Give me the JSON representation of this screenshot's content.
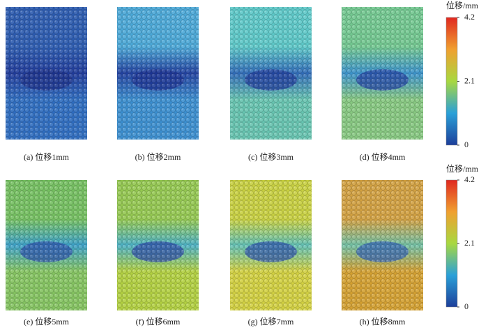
{
  "panels": [
    {
      "caption": "(a) 位移1mm"
    },
    {
      "caption": "(b) 位移2mm"
    },
    {
      "caption": "(c) 位移3mm"
    },
    {
      "caption": "(d) 位移4mm"
    },
    {
      "caption": "(e) 位移5mm"
    },
    {
      "caption": "(f) 位移6mm"
    },
    {
      "caption": "(g) 位移7mm"
    },
    {
      "caption": "(h) 位移8mm"
    }
  ],
  "colorbars": [
    {
      "label": "位移/mm",
      "range": [
        0,
        4.2
      ],
      "ticks": [
        0,
        2.1,
        4.2
      ]
    },
    {
      "label": "位移/mm",
      "range": [
        0,
        4.2
      ],
      "ticks": [
        0,
        2.1,
        4.2
      ]
    }
  ]
}
